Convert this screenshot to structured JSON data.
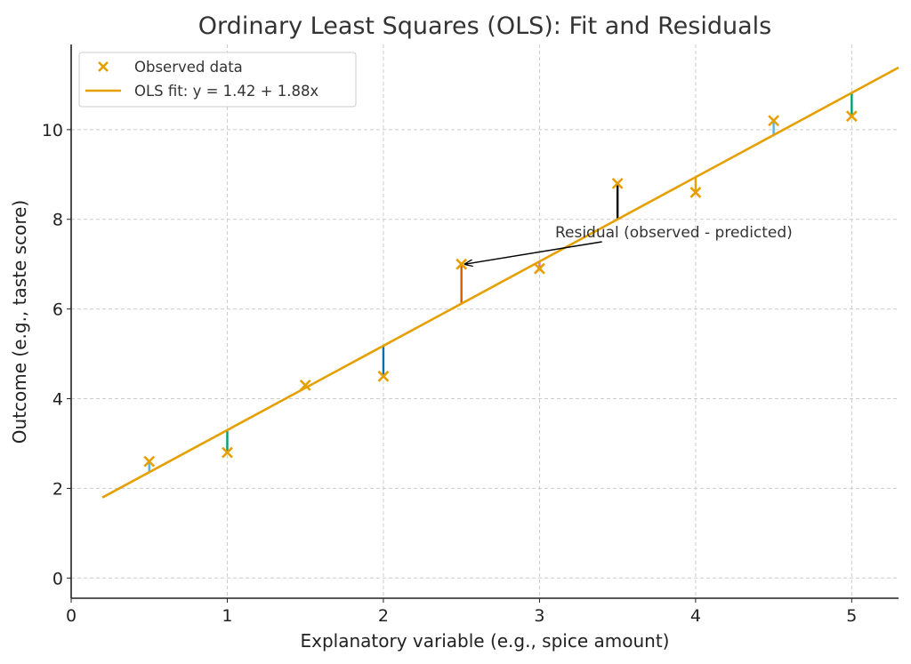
{
  "chart_data": {
    "type": "scatter",
    "title": "Ordinary Least Squares (OLS): Fit and Residuals",
    "xlabel": "Explanatory variable (e.g., spice amount)",
    "ylabel": "Outcome (e.g., taste score)",
    "xlim": [
      0,
      5.3
    ],
    "ylim": [
      -0.45,
      11.9
    ],
    "xticks": [
      0,
      1,
      2,
      3,
      4,
      5
    ],
    "yticks": [
      0,
      2,
      4,
      6,
      8,
      10
    ],
    "grid": true,
    "legend": {
      "position": "top-left",
      "entries": [
        {
          "label": "Observed data",
          "marker": "x",
          "color": "#E69F00"
        },
        {
          "label": "OLS fit: y = 1.42 + 1.88x",
          "marker": "line",
          "color": "#E69F00"
        }
      ]
    },
    "series": [
      {
        "name": "Observed data",
        "kind": "scatter",
        "marker": "x",
        "color": "#E69F00",
        "x": [
          0.5,
          1.0,
          1.5,
          2.0,
          2.5,
          3.0,
          3.5,
          4.0,
          4.5,
          5.0
        ],
        "y": [
          2.6,
          2.8,
          4.3,
          4.5,
          7.0,
          6.9,
          8.8,
          8.6,
          10.2,
          10.3
        ]
      },
      {
        "name": "OLS fit: y = 1.42 + 1.88x",
        "kind": "line",
        "color": "#E69F00",
        "intercept": 1.42,
        "slope": 1.88,
        "x_range": [
          0.2,
          5.3
        ]
      }
    ],
    "residual_colors": [
      "#56B4E9",
      "#009E73",
      "#F0E442",
      "#0072B2",
      "#D55E00",
      "#CC79A7",
      "#000000",
      "#E69F00",
      "#56B4E9",
      "#009E73"
    ],
    "annotation": {
      "text": "Residual (observed - predicted)",
      "text_at": [
        3.1,
        7.7
      ],
      "arrow_from": [
        3.4,
        7.5
      ],
      "arrow_to": [
        2.5,
        7.0
      ]
    }
  }
}
